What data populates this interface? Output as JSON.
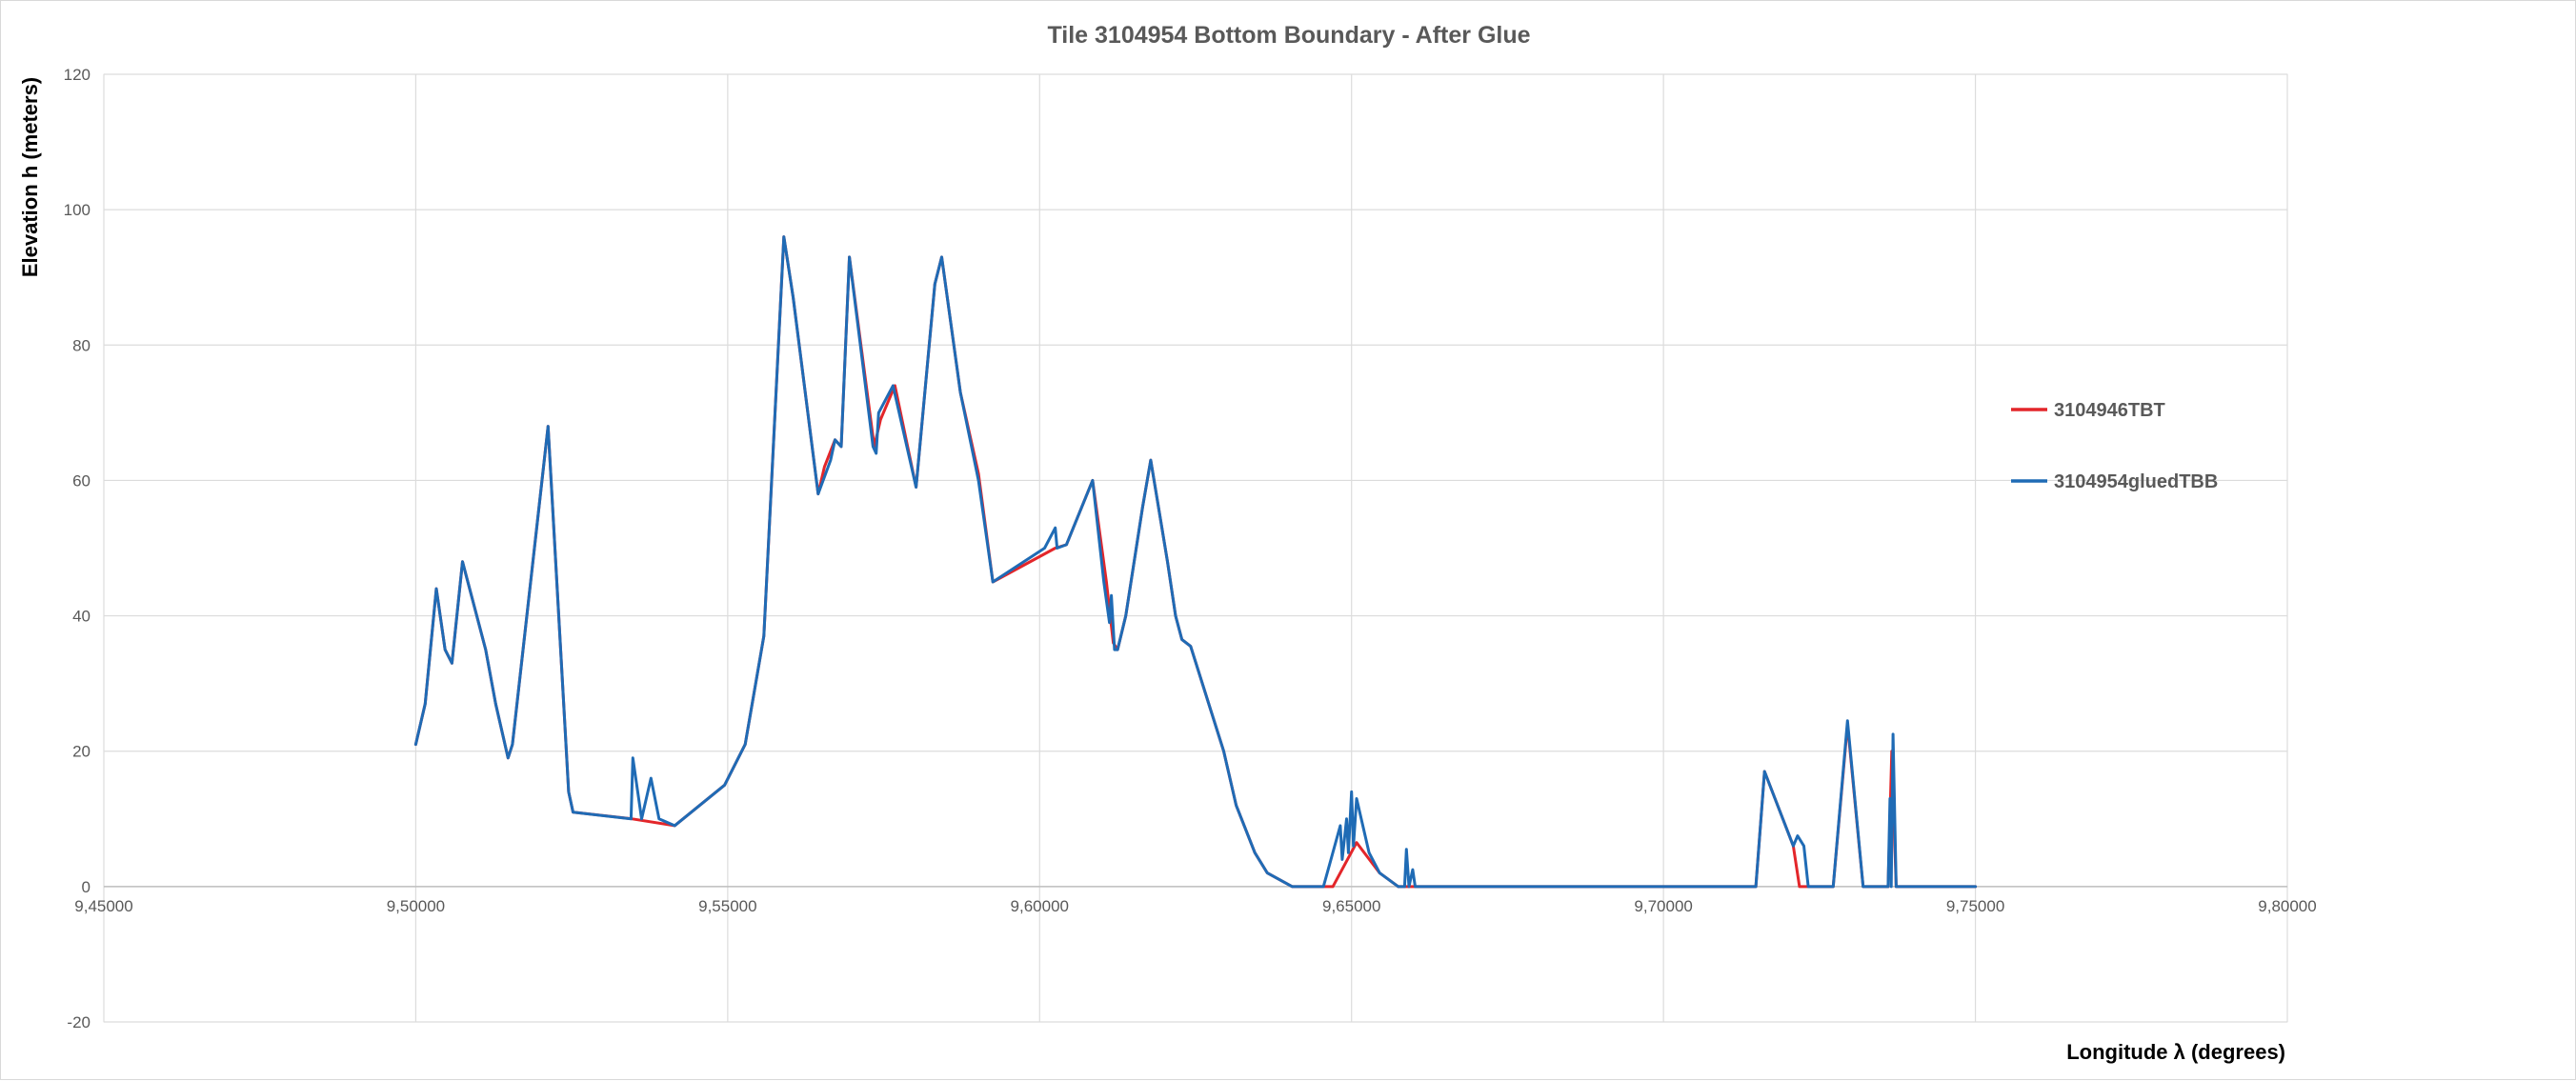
{
  "chart_data": {
    "type": "line",
    "title": "Tile 3104954 Bottom  Boundary - After Glue",
    "xlabel": "Longitude λ (degrees)",
    "ylabel": "Elevation h  (meters)",
    "xlim": [
      9.45,
      9.8
    ],
    "ylim": [
      -20,
      120
    ],
    "x_ticks": [
      9.45,
      9.5,
      9.55,
      9.6,
      9.65,
      9.7,
      9.75,
      9.8
    ],
    "x_tick_labels": [
      "9,45000",
      "9,50000",
      "9,55000",
      "9,60000",
      "9,65000",
      "9,70000",
      "9,75000",
      "9,80000"
    ],
    "y_ticks": [
      -20,
      0,
      20,
      40,
      60,
      80,
      100,
      120
    ],
    "y_tick_labels": [
      "-20",
      "0",
      "20",
      "40",
      "60",
      "80",
      "100",
      "120"
    ],
    "grid": true,
    "legend_position": "right",
    "series": [
      {
        "name": "3104946TBT",
        "color": "#e3262a",
        "points": [
          [
            9.5,
            21
          ],
          [
            9.5015,
            27
          ],
          [
            9.5033,
            44
          ],
          [
            9.5047,
            35
          ],
          [
            9.5058,
            33
          ],
          [
            9.5075,
            48
          ],
          [
            9.5112,
            35
          ],
          [
            9.5128,
            27
          ],
          [
            9.5148,
            19
          ],
          [
            9.5155,
            21
          ],
          [
            9.5212,
            68
          ],
          [
            9.5245,
            14
          ],
          [
            9.5252,
            11
          ],
          [
            9.5347,
            10
          ],
          [
            9.5415,
            9
          ],
          [
            9.5495,
            15
          ],
          [
            9.5528,
            21
          ],
          [
            9.5558,
            37
          ],
          [
            9.559,
            96
          ],
          [
            9.5605,
            87
          ],
          [
            9.5645,
            58
          ],
          [
            9.5655,
            62
          ],
          [
            9.5672,
            66
          ],
          [
            9.5682,
            65
          ],
          [
            9.5695,
            93
          ],
          [
            9.5735,
            65
          ],
          [
            9.5745,
            69
          ],
          [
            9.5768,
            74
          ],
          [
            9.5802,
            59
          ],
          [
            9.5832,
            89
          ],
          [
            9.5843,
            93
          ],
          [
            9.5873,
            73
          ],
          [
            9.5902,
            61
          ],
          [
            9.5925,
            45
          ],
          [
            9.6025,
            50
          ],
          [
            9.6043,
            50.5
          ],
          [
            9.6085,
            60
          ],
          [
            9.6107,
            45
          ],
          [
            9.6118,
            36
          ],
          [
            9.6125,
            35
          ],
          [
            9.6138,
            40
          ],
          [
            9.6165,
            56
          ],
          [
            9.6178,
            63
          ],
          [
            9.6205,
            48
          ],
          [
            9.6218,
            40
          ],
          [
            9.6228,
            36.5
          ],
          [
            9.6242,
            35.5
          ],
          [
            9.6295,
            20
          ],
          [
            9.6315,
            12
          ],
          [
            9.6345,
            5
          ],
          [
            9.6365,
            2
          ],
          [
            9.6405,
            0
          ],
          [
            9.647,
            0
          ],
          [
            9.6508,
            6.5
          ],
          [
            9.6545,
            2
          ],
          [
            9.6575,
            0
          ],
          [
            9.7148,
            0
          ],
          [
            9.7162,
            17
          ],
          [
            9.7208,
            6
          ],
          [
            9.7218,
            0
          ],
          [
            9.7272,
            0
          ],
          [
            9.7295,
            24
          ],
          [
            9.732,
            0
          ],
          [
            9.736,
            0
          ],
          [
            9.7366,
            20
          ],
          [
            9.7373,
            0
          ],
          [
            9.75,
            0
          ]
        ]
      },
      {
        "name": "3104954gluedTBB",
        "color": "#1f6bb5",
        "points": [
          [
            9.5,
            21
          ],
          [
            9.5015,
            27
          ],
          [
            9.5033,
            44
          ],
          [
            9.5047,
            35
          ],
          [
            9.5058,
            33
          ],
          [
            9.5075,
            48
          ],
          [
            9.5112,
            35
          ],
          [
            9.5128,
            27
          ],
          [
            9.5148,
            19
          ],
          [
            9.5155,
            21
          ],
          [
            9.5212,
            68
          ],
          [
            9.5245,
            14
          ],
          [
            9.5252,
            11
          ],
          [
            9.5345,
            10
          ],
          [
            9.5348,
            19
          ],
          [
            9.5362,
            10
          ],
          [
            9.5377,
            16
          ],
          [
            9.539,
            10
          ],
          [
            9.5415,
            9
          ],
          [
            9.5495,
            15
          ],
          [
            9.5528,
            21
          ],
          [
            9.5558,
            37
          ],
          [
            9.559,
            96
          ],
          [
            9.5605,
            87
          ],
          [
            9.5645,
            58
          ],
          [
            9.5665,
            63
          ],
          [
            9.5672,
            66
          ],
          [
            9.5682,
            65
          ],
          [
            9.5695,
            93
          ],
          [
            9.5733,
            65
          ],
          [
            9.5738,
            64
          ],
          [
            9.5742,
            70
          ],
          [
            9.5765,
            74
          ],
          [
            9.5802,
            59
          ],
          [
            9.5832,
            89
          ],
          [
            9.5843,
            93
          ],
          [
            9.5873,
            73
          ],
          [
            9.5902,
            60
          ],
          [
            9.5925,
            45
          ],
          [
            9.6008,
            50
          ],
          [
            9.6025,
            53
          ],
          [
            9.6028,
            50
          ],
          [
            9.6043,
            50.5
          ],
          [
            9.6085,
            60
          ],
          [
            9.6103,
            45
          ],
          [
            9.6112,
            39
          ],
          [
            9.6115,
            43
          ],
          [
            9.612,
            35
          ],
          [
            9.6125,
            35
          ],
          [
            9.6138,
            40
          ],
          [
            9.6165,
            56
          ],
          [
            9.6178,
            63
          ],
          [
            9.6205,
            48
          ],
          [
            9.6218,
            40
          ],
          [
            9.6228,
            36.5
          ],
          [
            9.6242,
            35.5
          ],
          [
            9.6295,
            20
          ],
          [
            9.6315,
            12
          ],
          [
            9.6345,
            5
          ],
          [
            9.6365,
            2
          ],
          [
            9.6405,
            0
          ],
          [
            9.6455,
            0
          ],
          [
            9.6482,
            9
          ],
          [
            9.6485,
            4
          ],
          [
            9.6492,
            10
          ],
          [
            9.6495,
            5
          ],
          [
            9.65,
            14
          ],
          [
            9.6503,
            6
          ],
          [
            9.6508,
            13
          ],
          [
            9.6528,
            5
          ],
          [
            9.6545,
            2
          ],
          [
            9.6575,
            0
          ],
          [
            9.6585,
            0
          ],
          [
            9.6588,
            5.5
          ],
          [
            9.6592,
            0
          ],
          [
            9.6598,
            2.5
          ],
          [
            9.6602,
            0
          ],
          [
            9.7148,
            0
          ],
          [
            9.7162,
            17
          ],
          [
            9.7208,
            6
          ],
          [
            9.7215,
            7.5
          ],
          [
            9.7225,
            6
          ],
          [
            9.7232,
            0
          ],
          [
            9.7272,
            0
          ],
          [
            9.7295,
            24.5
          ],
          [
            9.732,
            0
          ],
          [
            9.736,
            0
          ],
          [
            9.7363,
            13
          ],
          [
            9.7365,
            0
          ],
          [
            9.7368,
            22.5
          ],
          [
            9.7373,
            0
          ],
          [
            9.75,
            0
          ]
        ]
      }
    ]
  }
}
